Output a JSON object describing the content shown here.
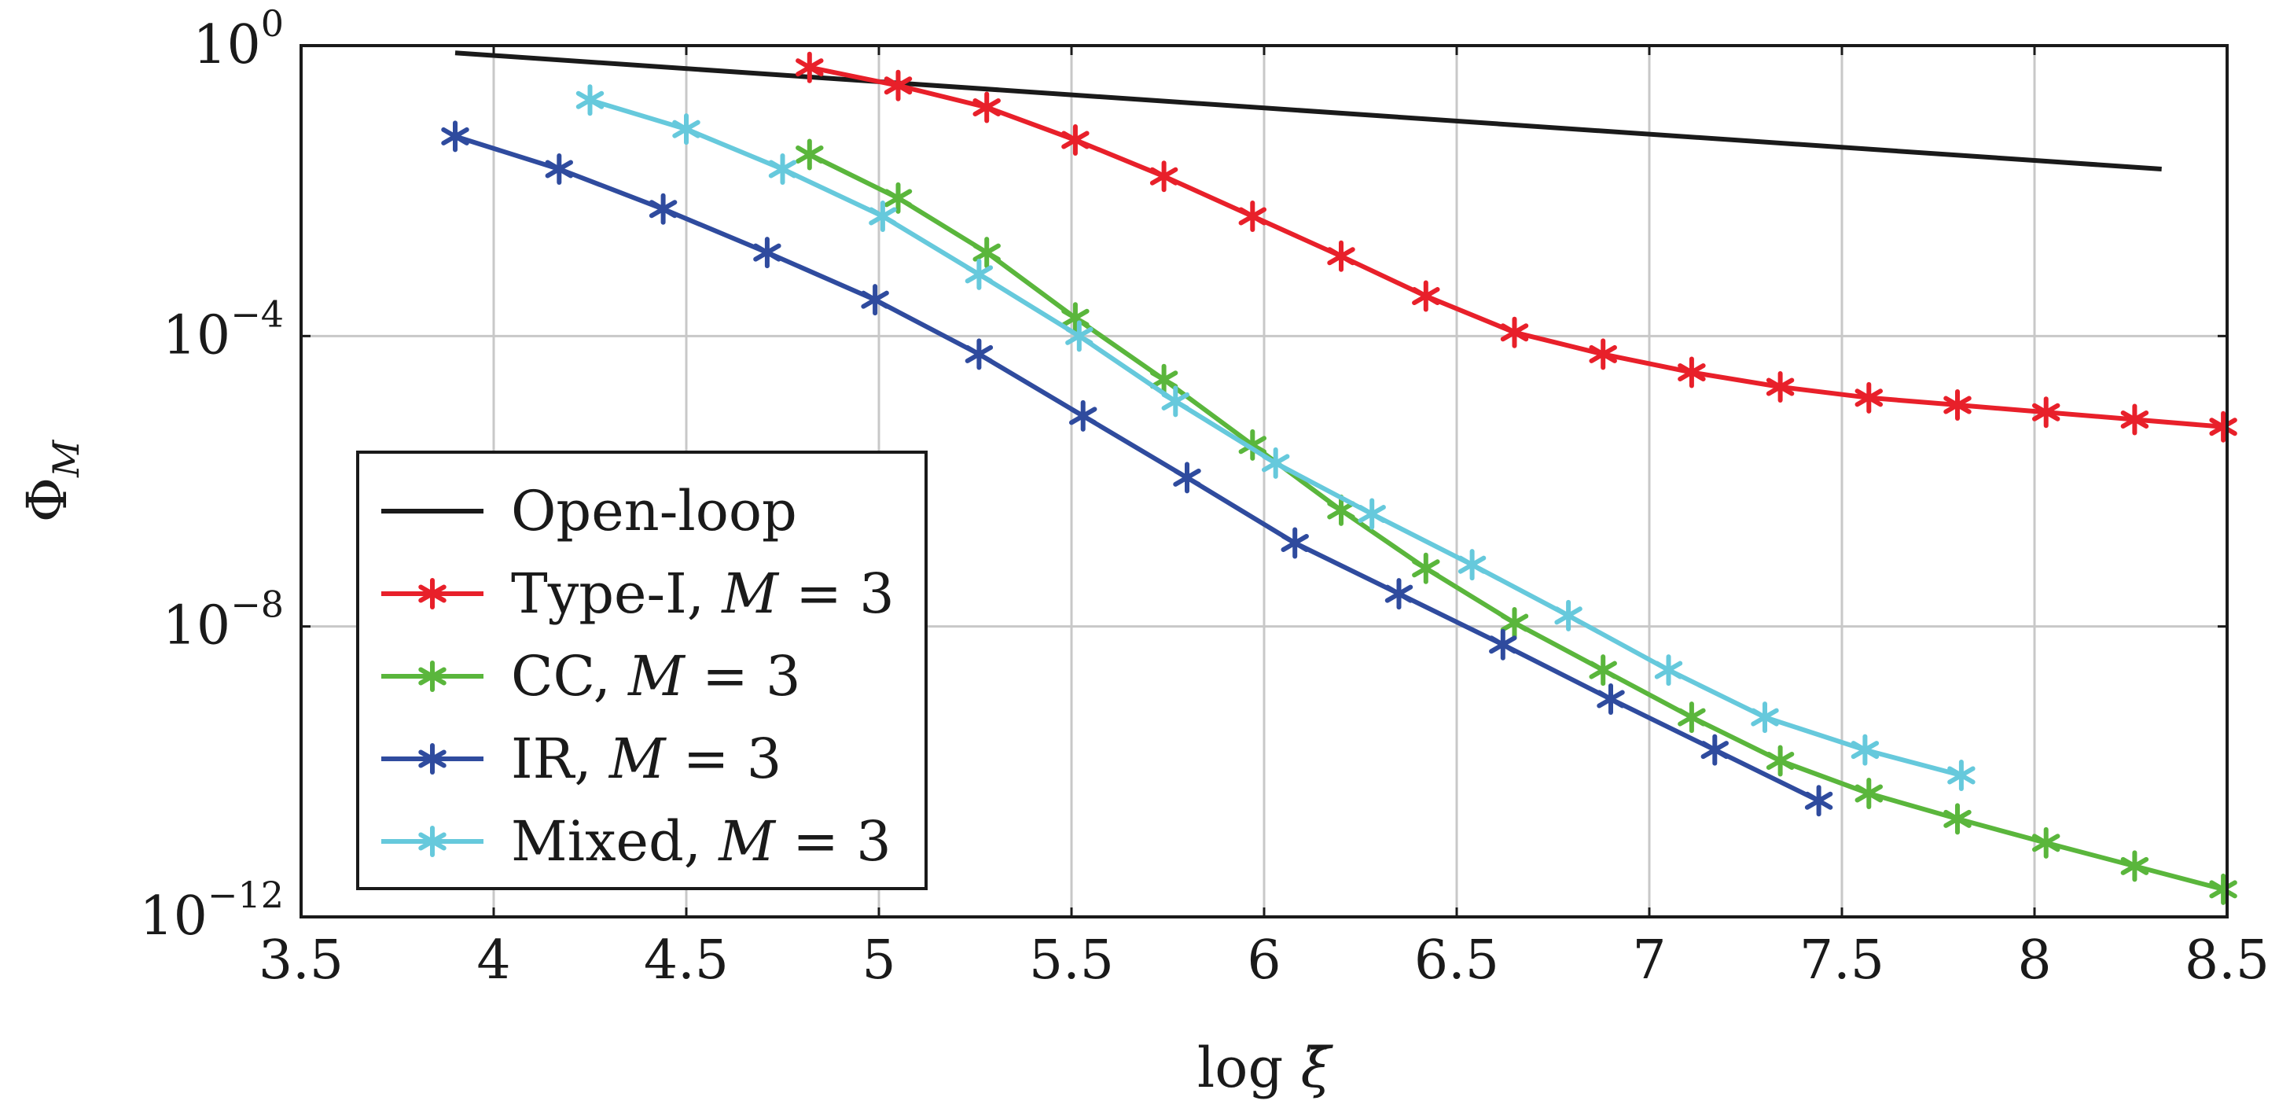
{
  "chart_data": {
    "type": "line",
    "title": "",
    "xlabel": "log ξ̄",
    "ylabel": "Φ_M",
    "xlabel_parts": {
      "func": "log",
      "symbol": "ξ̄"
    },
    "ylabel_parts": {
      "base": "Φ",
      "sub": "M"
    },
    "x_range": [
      3.5,
      8.5
    ],
    "y_log_range": [
      -12,
      0
    ],
    "x_ticks": [
      "3.5",
      "4",
      "4.5",
      "5",
      "5.5",
      "6",
      "6.5",
      "7",
      "7.5",
      "8",
      "8.5"
    ],
    "x_tick_values": [
      3.5,
      4,
      4.5,
      5,
      5.5,
      6,
      6.5,
      7,
      7.5,
      8,
      8.5
    ],
    "y_ticks": [
      {
        "base": "10",
        "exp": "0",
        "value": 0
      },
      {
        "base": "10",
        "exp": "−4",
        "value": -4
      },
      {
        "base": "10",
        "exp": "−8",
        "value": -8
      },
      {
        "base": "10",
        "exp": "−12",
        "value": -12
      }
    ],
    "grid": true,
    "legend_position": "bottom-left",
    "series": [
      {
        "name": "Open-loop",
        "color": "#1a1a1a",
        "marker": false,
        "label_main": "Open-loop",
        "label_var": "",
        "label_eq": "",
        "x": [
          3.9,
          8.33
        ],
        "log10_y": [
          -0.1,
          -1.7
        ]
      },
      {
        "name": "Type-I, M = 3",
        "color": "#e8202a",
        "marker": true,
        "label_main": "Type-I, ",
        "label_var": "M",
        "label_eq": " = 3",
        "x": [
          4.82,
          5.05,
          5.28,
          5.51,
          5.74,
          5.97,
          6.2,
          6.42,
          6.65,
          6.88,
          7.11,
          7.34,
          7.57,
          7.8,
          8.03,
          8.26,
          8.49
        ],
        "log10_y": [
          -0.3,
          -0.55,
          -0.85,
          -1.3,
          -1.8,
          -2.35,
          -2.9,
          -3.45,
          -3.95,
          -4.25,
          -4.5,
          -4.7,
          -4.85,
          -4.95,
          -5.05,
          -5.15,
          -5.25
        ]
      },
      {
        "name": "CC, M = 3",
        "color": "#5ab63c",
        "marker": true,
        "label_main": "CC, ",
        "label_var": "M",
        "label_eq": " = 3",
        "x": [
          4.82,
          5.05,
          5.28,
          5.51,
          5.74,
          5.97,
          6.2,
          6.42,
          6.65,
          6.88,
          7.11,
          7.34,
          7.57,
          7.8,
          8.03,
          8.26,
          8.49
        ],
        "log10_y": [
          -1.5,
          -2.1,
          -2.85,
          -3.75,
          -4.6,
          -5.5,
          -6.4,
          -7.2,
          -7.95,
          -8.6,
          -9.25,
          -9.85,
          -10.3,
          -10.65,
          -10.98,
          -11.3,
          -11.62
        ]
      },
      {
        "name": "IR, M = 3",
        "color": "#2f4b9e",
        "marker": true,
        "label_main": "IR, ",
        "label_var": "M",
        "label_eq": " = 3",
        "x": [
          3.9,
          4.17,
          4.44,
          4.71,
          4.99,
          5.26,
          5.53,
          5.8,
          6.08,
          6.35,
          6.62,
          6.9,
          7.17,
          7.44
        ],
        "log10_y": [
          -1.25,
          -1.7,
          -2.25,
          -2.85,
          -3.5,
          -4.25,
          -5.1,
          -5.95,
          -6.85,
          -7.55,
          -8.25,
          -9.0,
          -9.7,
          -10.4
        ]
      },
      {
        "name": "Mixed, M = 3",
        "color": "#66c9dc",
        "marker": true,
        "label_main": "Mixed, ",
        "label_var": "M",
        "label_eq": " = 3",
        "x": [
          4.25,
          4.5,
          4.75,
          5.01,
          5.26,
          5.52,
          5.77,
          6.03,
          6.28,
          6.54,
          6.79,
          7.05,
          7.3,
          7.56,
          7.81
        ],
        "log10_y": [
          -0.75,
          -1.15,
          -1.7,
          -2.35,
          -3.15,
          -4.0,
          -4.9,
          -5.75,
          -6.45,
          -7.15,
          -7.85,
          -8.6,
          -9.25,
          -9.7,
          -10.05
        ]
      }
    ]
  }
}
